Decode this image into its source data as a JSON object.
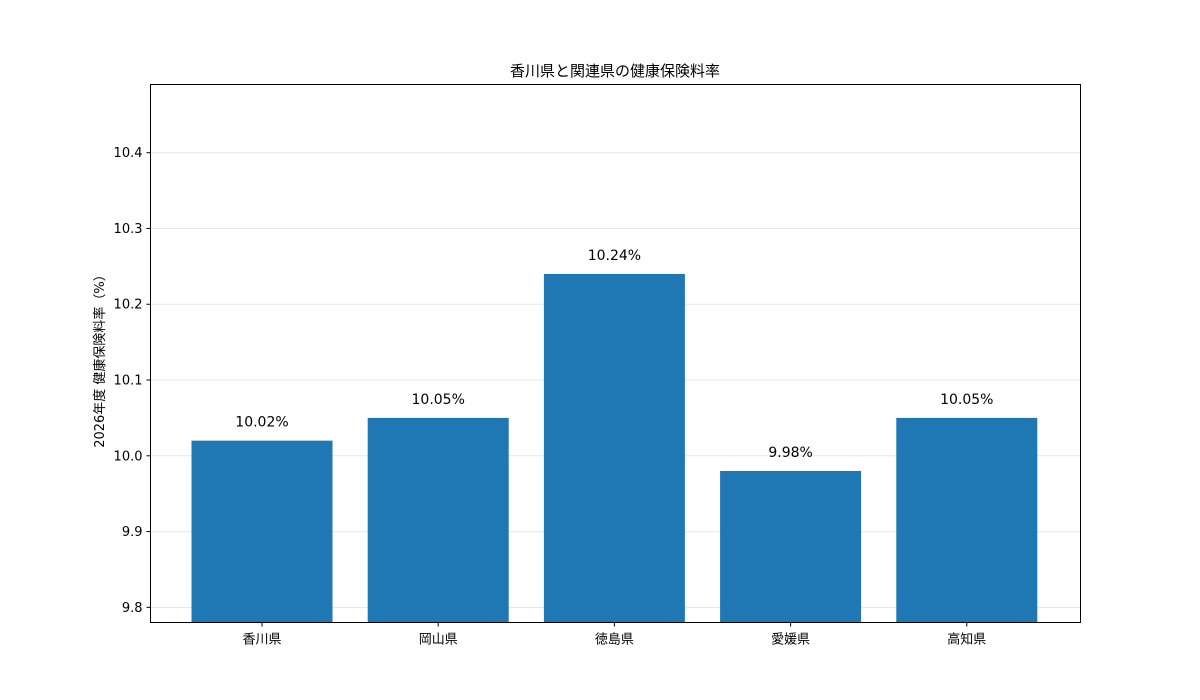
{
  "chart_data": {
    "type": "bar",
    "title": "香川県と関連県の健康保険料率",
    "xlabel": "",
    "ylabel": "2026年度 健康保険料率（%）",
    "categories": [
      "香川県",
      "岡山県",
      "徳島県",
      "愛媛県",
      "高知県"
    ],
    "values": [
      10.02,
      10.05,
      10.24,
      9.98,
      10.05
    ],
    "data_labels": [
      "10.02%",
      "10.05%",
      "10.24%",
      "9.98%",
      "10.05%"
    ],
    "ylim": [
      9.78,
      10.49
    ],
    "yticks": [
      9.8,
      9.9,
      10.0,
      10.1,
      10.2,
      10.3,
      10.4
    ],
    "ytick_labels": [
      "9.8",
      "9.9",
      "10.0",
      "10.1",
      "10.2",
      "10.3",
      "10.4"
    ],
    "grid": true,
    "bar_color": "#1f77b4"
  }
}
